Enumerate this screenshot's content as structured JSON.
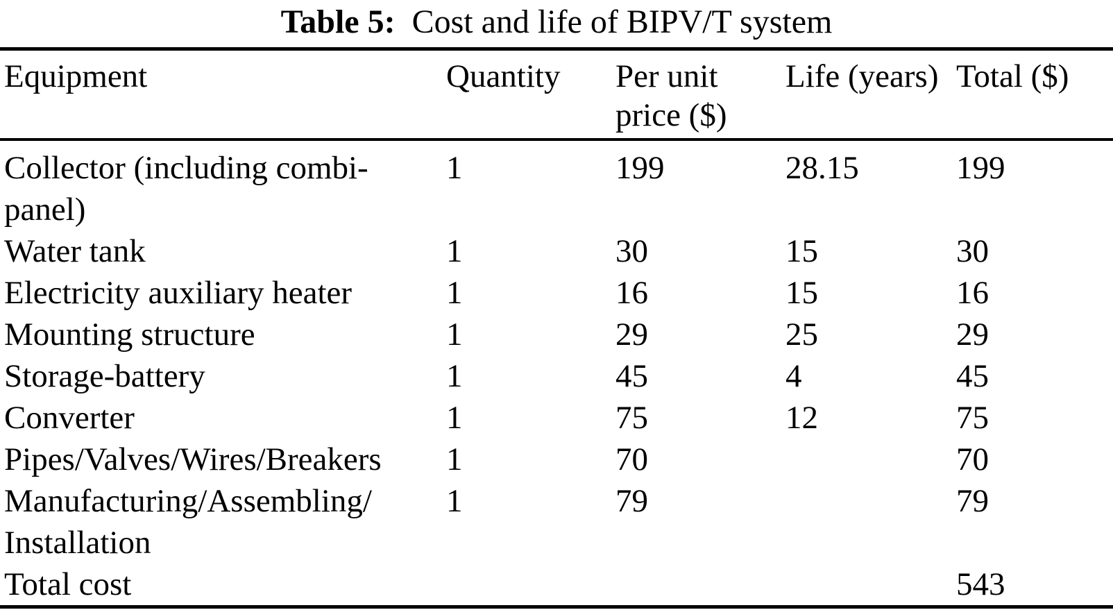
{
  "caption": {
    "label": "Table 5:",
    "text": "Cost and life of BIPV/T system"
  },
  "table": {
    "columns": [
      "Equipment",
      "Quantity",
      "Per unit price ($)",
      "Life (years)",
      "Total ($)"
    ],
    "fields": [
      "equipment",
      "quantity",
      "per_unit_price",
      "life_years",
      "total"
    ],
    "rows": [
      {
        "equipment": "Collector (including combi-panel)",
        "quantity": "1",
        "per_unit_price": "199",
        "life_years": "28.15",
        "total": "199"
      },
      {
        "equipment": "Water tank",
        "quantity": "1",
        "per_unit_price": "30",
        "life_years": "15",
        "total": "30"
      },
      {
        "equipment": "Electricity auxiliary heater",
        "quantity": "1",
        "per_unit_price": "16",
        "life_years": "15",
        "total": "16"
      },
      {
        "equipment": "Mounting structure",
        "quantity": "1",
        "per_unit_price": "29",
        "life_years": "25",
        "total": "29"
      },
      {
        "equipment": "Storage-battery",
        "quantity": "1",
        "per_unit_price": "45",
        "life_years": "4",
        "total": "45"
      },
      {
        "equipment": "Converter",
        "quantity": "1",
        "per_unit_price": "75",
        "life_years": "12",
        "total": "75"
      },
      {
        "equipment": "Pipes/Valves/Wires/Breakers",
        "quantity": "1",
        "per_unit_price": "70",
        "life_years": "",
        "total": "70"
      },
      {
        "equipment": "Manufacturing/Assembling/Installation",
        "quantity": "1",
        "per_unit_price": "79",
        "life_years": "",
        "total": "79"
      },
      {
        "equipment": "Total cost",
        "quantity": "",
        "per_unit_price": "",
        "life_years": "",
        "total": "543"
      }
    ]
  },
  "colors": {
    "text": "#000000",
    "background": "#ffffff",
    "rule": "#000000"
  }
}
